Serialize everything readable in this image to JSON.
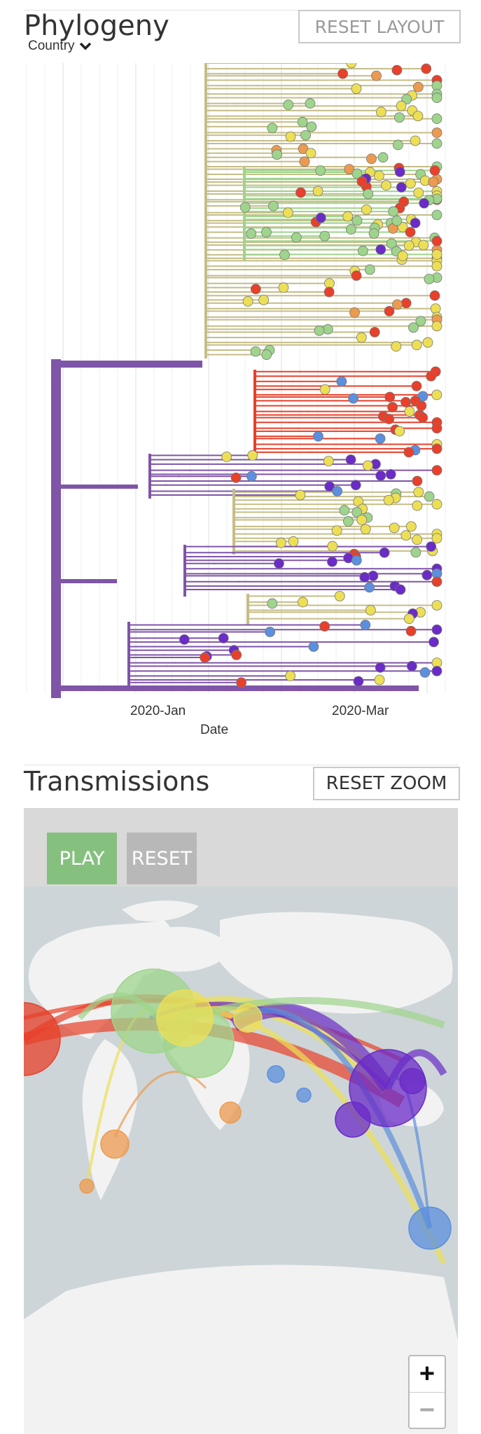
{
  "phylogeny": {
    "title": "Phylogeny",
    "color_by": "Country",
    "reset_button": "RESET LAYOUT",
    "x_ticks": [
      "2020-Jan",
      "2020-Mar"
    ],
    "x_axis_label": "Date"
  },
  "transmissions": {
    "title": "Transmissions",
    "reset_zoom_button": "RESET ZOOM",
    "play_button": "PLAY",
    "reset_button": "RESET",
    "zoom_in": "+",
    "zoom_out": "−"
  },
  "colors": {
    "purple": "#7f55a8",
    "olive": "#c5bd86",
    "green": "#9ed48c",
    "yellow": "#ecdf55",
    "red": "#e8402a",
    "blue": "#5c8fdd",
    "orange": "#ec9a4f",
    "violet": "#6a2bc7",
    "map_water": "#cdd5d8",
    "map_land": "#f2f2f2",
    "play_green": "#86c07f"
  },
  "icons": {
    "dropdown": "chevron-down-icon",
    "zoom_in": "plus-icon",
    "zoom_out": "minus-icon"
  }
}
